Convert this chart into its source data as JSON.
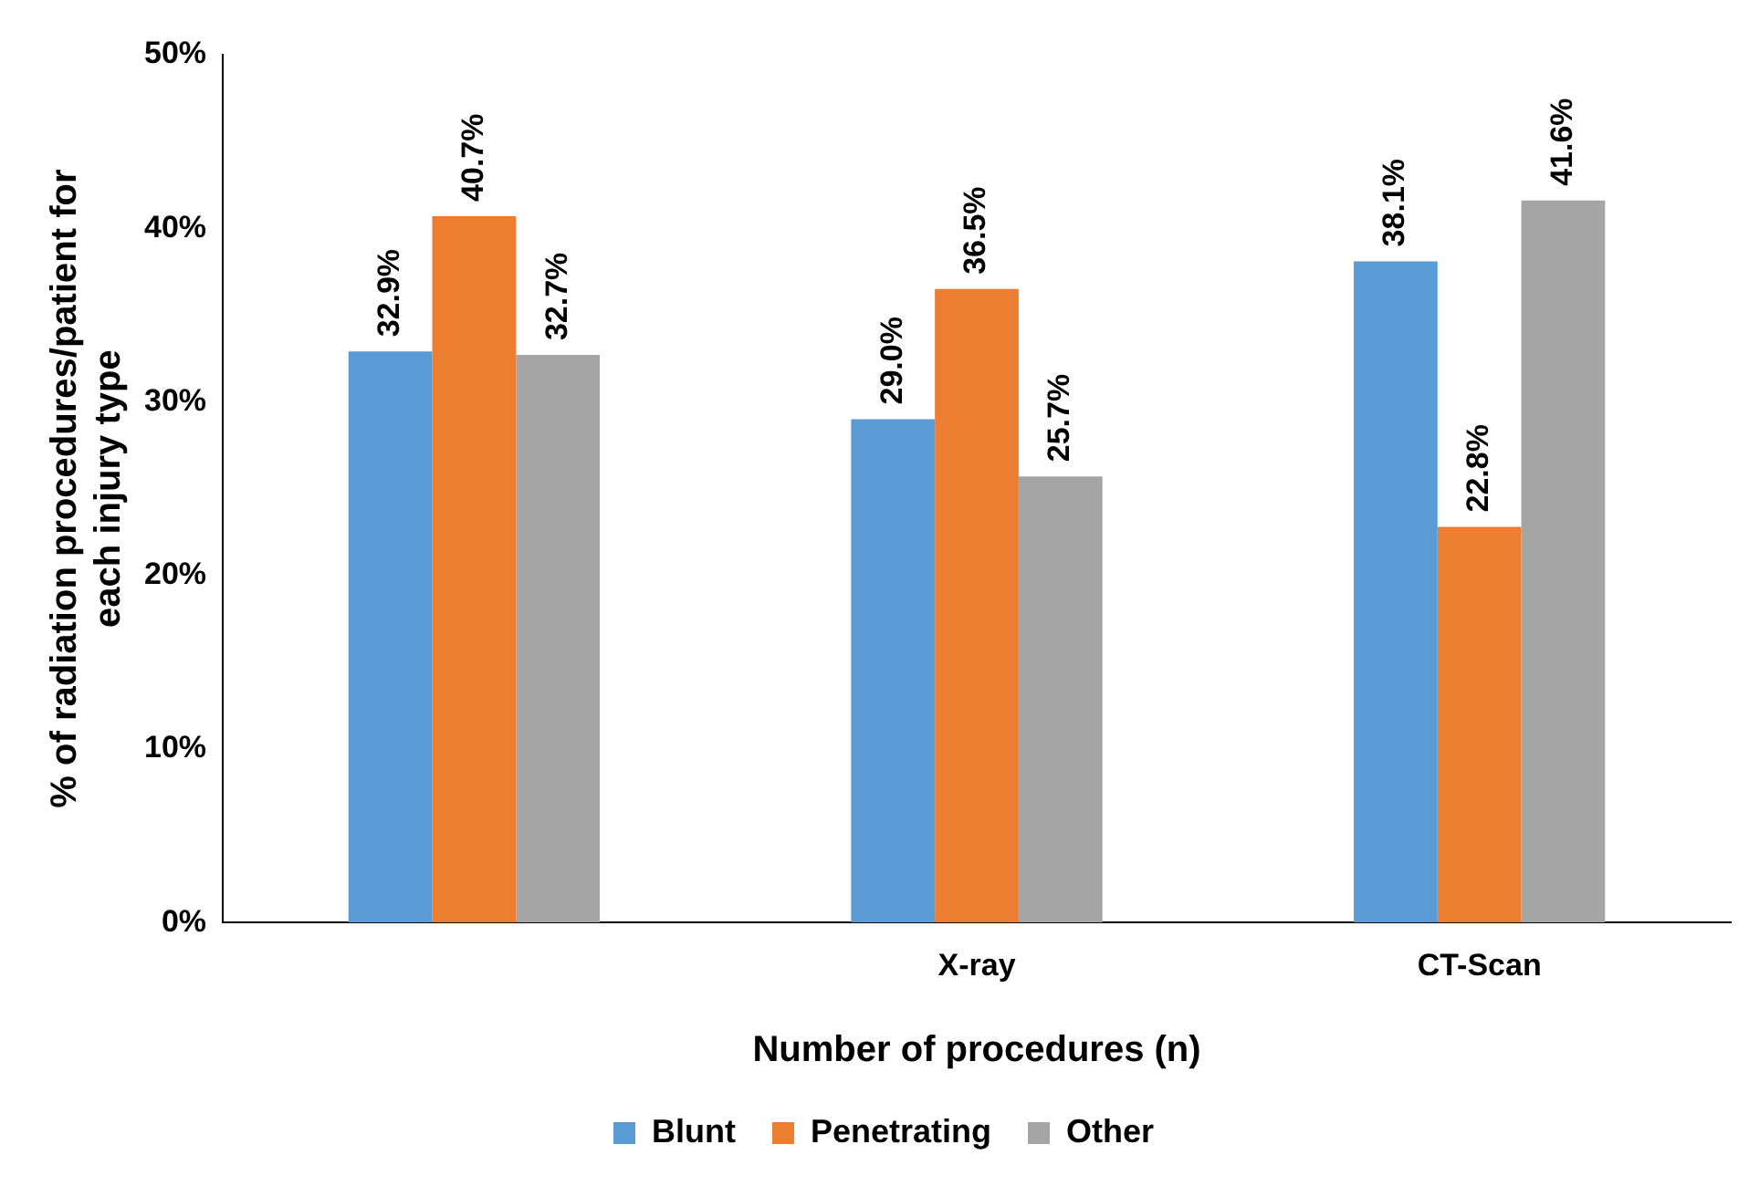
{
  "chart_data": {
    "type": "bar",
    "xlabel": "Number of procedures (n)",
    "ylabel": "% of radiation procedures/patient for each injury type",
    "categories": [
      null,
      "X-ray",
      "CT-Scan"
    ],
    "series": [
      {
        "name": "Blunt",
        "color": "#5b9bd5",
        "values": [
          32.9,
          29.0,
          38.1
        ],
        "value_labels": [
          "32.9%",
          "29.0%",
          "38.1%"
        ]
      },
      {
        "name": "Penetrating",
        "color": "#ed7d31",
        "values": [
          40.7,
          36.5,
          22.8
        ],
        "value_labels": [
          "40.7%",
          "36.5%",
          "22.8%"
        ]
      },
      {
        "name": "Other",
        "color": "#a5a5a5",
        "values": [
          32.7,
          25.7,
          41.6
        ],
        "value_labels": [
          "32.7%",
          "25.7%",
          "41.6%"
        ]
      }
    ],
    "ylim": [
      0,
      50
    ],
    "yticks": [
      {
        "value": 0,
        "label": "0%"
      },
      {
        "value": 10,
        "label": "10%"
      },
      {
        "value": 20,
        "label": "20%"
      },
      {
        "value": 30,
        "label": "30%"
      },
      {
        "value": 40,
        "label": "40%"
      },
      {
        "value": 50,
        "label": "50%"
      }
    ],
    "grid": false,
    "legend": "bottom"
  }
}
